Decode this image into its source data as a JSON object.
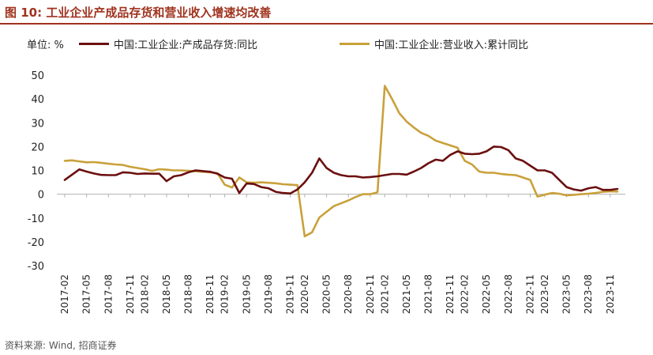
{
  "header": {
    "title": "图 10:  工业企业产成品存货和营业收入增速均改善",
    "unit": "单位:  %"
  },
  "footer": {
    "source": "资料来源:  Wind,  招商证券"
  },
  "colors": {
    "title": "#a0331f",
    "series_inventory": "#6b0f0f",
    "series_revenue": "#c9a13a"
  },
  "chart_data": {
    "type": "line",
    "ylim": [
      -30,
      50
    ],
    "yticks": [
      -30,
      -20,
      -10,
      0,
      10,
      20,
      30,
      40,
      50
    ],
    "grid": false,
    "legend_position": "top",
    "x": [
      "2017-02",
      "2017-03",
      "2017-04",
      "2017-05",
      "2017-06",
      "2017-07",
      "2017-08",
      "2017-09",
      "2017-10",
      "2017-11",
      "2017-12",
      "2018-02",
      "2018-03",
      "2018-04",
      "2018-05",
      "2018-06",
      "2018-07",
      "2018-08",
      "2018-09",
      "2018-10",
      "2018-11",
      "2018-12",
      "2019-02",
      "2019-03",
      "2019-04",
      "2019-05",
      "2019-06",
      "2019-07",
      "2019-08",
      "2019-09",
      "2019-10",
      "2019-11",
      "2019-12",
      "2020-02",
      "2020-03",
      "2020-04",
      "2020-05",
      "2020-06",
      "2020-07",
      "2020-08",
      "2020-09",
      "2020-10",
      "2020-11",
      "2020-12",
      "2021-02",
      "2021-03",
      "2021-04",
      "2021-05",
      "2021-06",
      "2021-07",
      "2021-08",
      "2021-09",
      "2021-10",
      "2021-11",
      "2021-12",
      "2022-02",
      "2022-03",
      "2022-04",
      "2022-05",
      "2022-06",
      "2022-07",
      "2022-08",
      "2022-09",
      "2022-10",
      "2022-11",
      "2022-12",
      "2023-02",
      "2023-03",
      "2023-04",
      "2023-05",
      "2023-06",
      "2023-07",
      "2023-08",
      "2023-09",
      "2023-10",
      "2023-11",
      "2023-12"
    ],
    "xtick_labels": [
      "2017-02",
      "2017-05",
      "2017-08",
      "2017-11",
      "2018-02",
      "2018-05",
      "2018-08",
      "2018-11",
      "2019-02",
      "2019-05",
      "2019-08",
      "2019-11",
      "2020-02",
      "2020-05",
      "2020-08",
      "2020-11",
      "2021-02",
      "2021-05",
      "2021-08",
      "2021-11",
      "2022-02",
      "2022-05",
      "2022-08",
      "2022-11",
      "2023-02",
      "2023-05",
      "2023-08",
      "2023-11"
    ],
    "series": [
      {
        "name": "中国:工业企业:产成品存货:同比",
        "values": [
          6.0,
          8.2,
          10.4,
          9.5,
          8.7,
          8.1,
          8.0,
          8.0,
          9.2,
          9.0,
          8.5,
          8.7,
          8.6,
          8.6,
          5.5,
          7.5,
          8.0,
          9.2,
          10.0,
          9.7,
          9.4,
          8.6,
          7.0,
          6.5,
          0.5,
          4.5,
          4.3,
          3.0,
          2.5,
          1.0,
          0.5,
          0.3,
          2.0,
          5.0,
          9.0,
          15.0,
          11.0,
          9.0,
          8.0,
          7.5,
          7.5,
          7.0,
          7.2,
          7.5,
          8.0,
          8.5,
          8.5,
          8.2,
          9.5,
          11.0,
          13.0,
          14.5,
          14.0,
          16.5,
          18.0,
          17.0,
          16.8,
          17.0,
          18.0,
          20.0,
          19.8,
          18.5,
          15.0,
          14.0,
          12.0,
          10.0,
          10.0,
          9.0,
          6.0,
          3.0,
          2.0,
          1.5,
          2.5,
          3.0,
          1.8,
          1.8,
          2.2
        ]
      },
      {
        "name": "中国:工业企业:营业收入:累计同比",
        "values": [
          14.0,
          14.2,
          13.8,
          13.4,
          13.5,
          13.2,
          12.8,
          12.5,
          12.3,
          11.5,
          11.0,
          10.5,
          9.8,
          10.5,
          10.3,
          10.0,
          10.0,
          9.8,
          9.6,
          9.4,
          9.2,
          8.8,
          4.0,
          2.8,
          7.0,
          5.0,
          4.8,
          5.0,
          4.8,
          4.6,
          4.2,
          4.0,
          3.8,
          -17.7,
          -16.0,
          -9.8,
          -7.4,
          -5.0,
          -3.8,
          -2.6,
          -1.2,
          0.0,
          0.0,
          0.8,
          45.5,
          40.0,
          34.0,
          30.5,
          28.0,
          25.8,
          24.5,
          22.5,
          21.5,
          20.5,
          19.5,
          14.0,
          12.5,
          9.5,
          9.0,
          9.0,
          8.5,
          8.2,
          8.0,
          7.0,
          6.0,
          -1.0,
          -0.2,
          0.5,
          0.2,
          -0.5,
          -0.3,
          0.0,
          0.2,
          0.5,
          1.0,
          1.2,
          1.1
        ]
      }
    ]
  }
}
